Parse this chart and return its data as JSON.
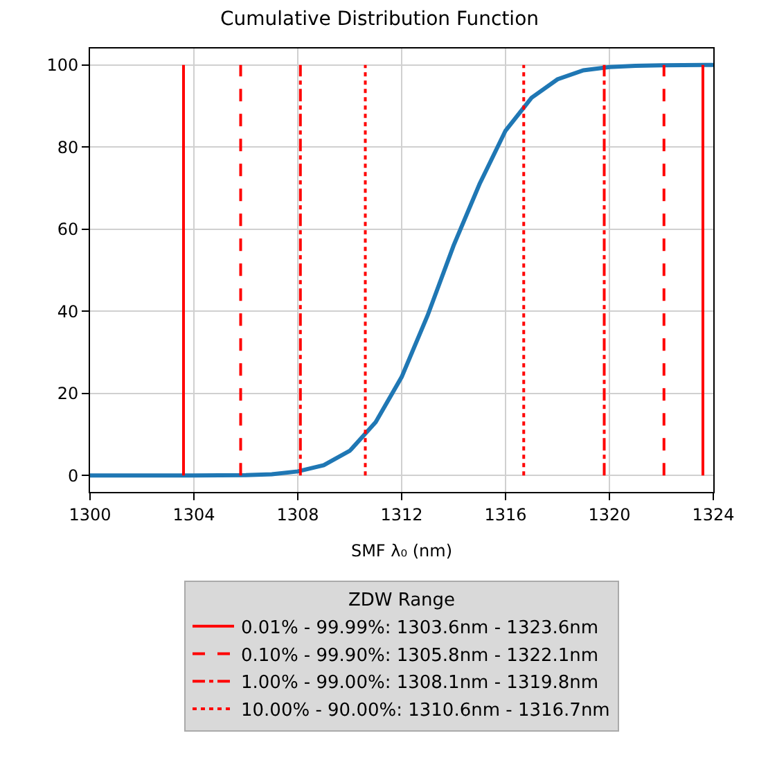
{
  "chart_data": {
    "type": "line",
    "title": "Cumulative Distribution Function",
    "xlabel": "SMF λ₀ (nm)",
    "legend_title": "ZDW Range",
    "xlim": [
      1300,
      1324
    ],
    "xticks": [
      1300,
      1304,
      1308,
      1312,
      1316,
      1320,
      1324
    ],
    "ylim": [
      -4,
      104
    ],
    "yticks": [
      0,
      20,
      40,
      60,
      80,
      100
    ],
    "grid": true,
    "legend": "bottom",
    "marker": "none",
    "series": [
      {
        "color": "#1f77b4",
        "x": [
          1300,
          1304,
          1306,
          1307,
          1308,
          1309,
          1310,
          1311,
          1312,
          1313,
          1314,
          1315,
          1316,
          1317,
          1318,
          1319,
          1320,
          1321,
          1322,
          1324
        ],
        "values": [
          0,
          0,
          0.1,
          0.3,
          1,
          2.5,
          6,
          13,
          24,
          39,
          56,
          71,
          84,
          92,
          96.5,
          98.7,
          99.5,
          99.8,
          99.9,
          100
        ]
      },
      {
        "name": "0.01% - 99.99%: 1303.6nm - 1323.6nm",
        "color": "#ff0000",
        "line_style": "solid",
        "x": [
          1303.6,
          1303.6,
          null,
          1323.6,
          1323.6
        ],
        "values": [
          0,
          100,
          null,
          0,
          100
        ]
      },
      {
        "name": "0.10% - 99.90%: 1305.8nm - 1322.1nm",
        "color": "#ff0000",
        "line_style": "dashed",
        "x": [
          1305.8,
          1305.8,
          null,
          1322.1,
          1322.1
        ],
        "values": [
          0,
          100,
          null,
          0,
          100
        ]
      },
      {
        "name": "1.00% - 99.00%: 1308.1nm - 1319.8nm",
        "color": "#ff0000",
        "line_style": "dashdot",
        "x": [
          1308.1,
          1308.1,
          null,
          1319.8,
          1319.8
        ],
        "values": [
          0,
          100,
          null,
          0,
          100
        ]
      },
      {
        "name": "10.00% - 90.00%: 1310.6nm - 1316.7nm",
        "color": "#ff0000",
        "line_style": "dotted",
        "x": [
          1310.6,
          1310.6,
          null,
          1316.7,
          1316.7
        ],
        "values": [
          0,
          100,
          null,
          0,
          100
        ]
      }
    ]
  }
}
